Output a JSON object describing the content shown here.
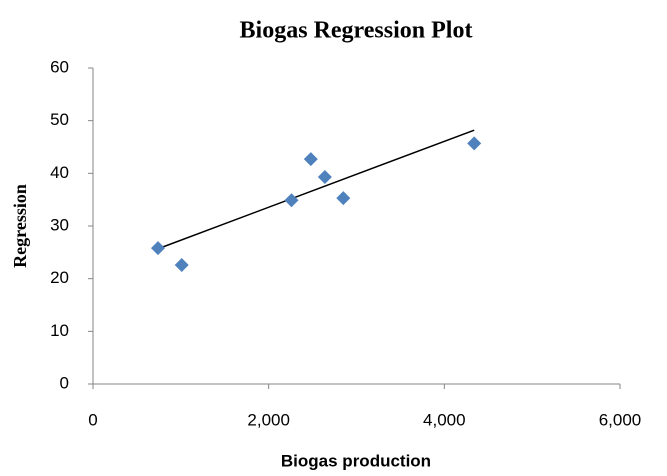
{
  "chart_data": {
    "type": "scatter",
    "title": "Biogas Regression Plot",
    "x_label": "Biogas production",
    "y_label": "Regression",
    "series": [
      {
        "color": "#4f81bd",
        "x": [
          740,
          1010,
          2260,
          2480,
          2640,
          2850,
          4340
        ],
        "values": [
          25.8,
          22.6,
          34.9,
          42.7,
          39.3,
          35.3,
          45.7
        ]
      }
    ],
    "trendline": {
      "color": "#000000",
      "x": [
        760,
        4340
      ],
      "values": [
        25.8,
        48.2
      ]
    },
    "xlim": [
      0,
      6000
    ],
    "xticks": [
      0,
      {
        "value": 2000,
        "label": "2,000"
      },
      {
        "value": 4000,
        "label": "4,000"
      },
      {
        "value": 6000,
        "label": "6,000"
      }
    ],
    "ylim": [
      0,
      60
    ],
    "yticks": [
      0,
      10,
      20,
      30,
      40,
      50,
      60
    ],
    "grid": false
  }
}
